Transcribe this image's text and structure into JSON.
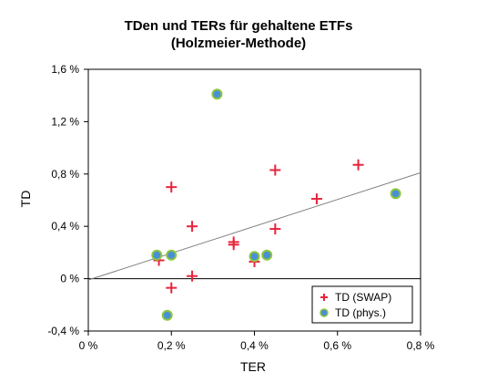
{
  "chart_data": {
    "type": "scatter",
    "title_lines": [
      "TDen und TERs für gehaltene ETFs",
      "(Holzmeier-Methode)"
    ],
    "xlabel": "TER",
    "ylabel": "TD",
    "xlim": [
      0,
      0.8
    ],
    "ylim": [
      -0.4,
      1.6
    ],
    "x_ticks": [
      0,
      0.2,
      0.4,
      0.6,
      0.8
    ],
    "x_tick_labels": [
      "0 %",
      "0,2 %",
      "0,4 %",
      "0,6 %",
      "0,8 %"
    ],
    "y_ticks": [
      -0.4,
      0,
      0.4,
      0.8,
      1.2,
      1.6
    ],
    "y_tick_labels": [
      "-0,4 %",
      "0 %",
      "0,4 %",
      "0,8 %",
      "1,2 %",
      "1,6 %"
    ],
    "grid": false,
    "legend_position": "bottom-right",
    "trendline": {
      "type": "linear",
      "x": [
        0,
        0.8
      ],
      "y": [
        -0.01,
        0.81
      ],
      "color": "#808080"
    },
    "series": [
      {
        "name": "TD (SWAP)",
        "marker": "plus",
        "color": "#e8243c",
        "points": [
          {
            "x": 0.17,
            "y": 0.14
          },
          {
            "x": 0.2,
            "y": 0.7
          },
          {
            "x": 0.2,
            "y": -0.07
          },
          {
            "x": 0.25,
            "y": 0.4
          },
          {
            "x": 0.25,
            "y": 0.02
          },
          {
            "x": 0.35,
            "y": 0.28
          },
          {
            "x": 0.35,
            "y": 0.26
          },
          {
            "x": 0.4,
            "y": 0.13
          },
          {
            "x": 0.45,
            "y": 0.83
          },
          {
            "x": 0.45,
            "y": 0.38
          },
          {
            "x": 0.55,
            "y": 0.61
          },
          {
            "x": 0.65,
            "y": 0.87
          }
        ]
      },
      {
        "name": "TD (phys.)",
        "marker": "circle",
        "color": "#4a8fd4",
        "edge_color": "#8cc63e",
        "points": [
          {
            "x": 0.165,
            "y": 0.18
          },
          {
            "x": 0.2,
            "y": 0.18
          },
          {
            "x": 0.19,
            "y": -0.28
          },
          {
            "x": 0.31,
            "y": 1.41
          },
          {
            "x": 0.4,
            "y": 0.17
          },
          {
            "x": 0.43,
            "y": 0.18
          },
          {
            "x": 0.74,
            "y": 0.65
          }
        ]
      }
    ]
  }
}
